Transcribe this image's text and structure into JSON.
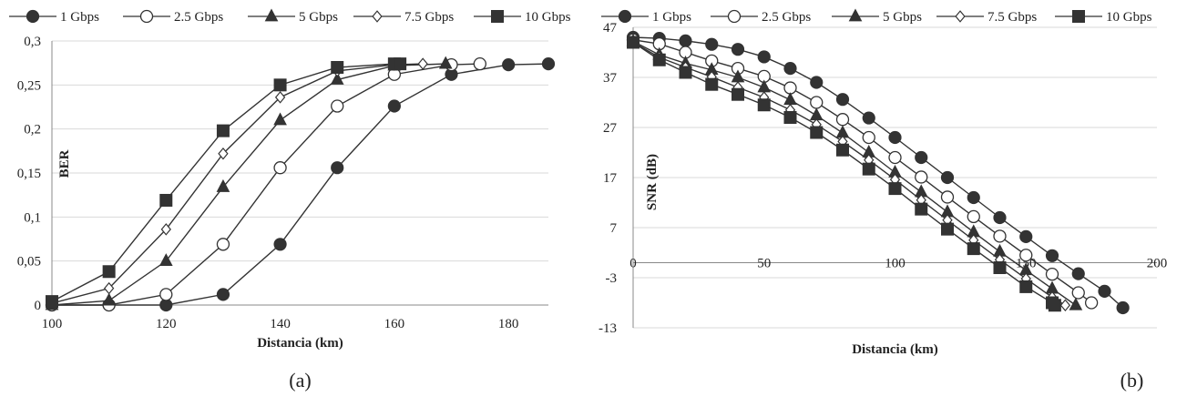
{
  "charts": [
    {
      "id": "a",
      "caption": "(a)",
      "chart_data": {
        "type": "line",
        "xlabel": "Distancia  (km)",
        "ylabel": "BER",
        "xlim": [
          100,
          187
        ],
        "ylim": [
          0,
          0.3
        ],
        "xticks": [
          100,
          120,
          140,
          160,
          180
        ],
        "xtick_labels": [
          "100",
          "120",
          "140",
          "160",
          "180"
        ],
        "yticks": [
          0,
          0.05,
          0.1,
          0.15,
          0.2,
          0.25,
          0.3
        ],
        "ytick_labels": [
          "0",
          "0,05",
          "0,1",
          "0,15",
          "0,2",
          "0,25",
          "0,3"
        ],
        "grid": "horizontal",
        "legend": "top",
        "series": [
          {
            "name": "1 Gbps",
            "marker": "circle-filled",
            "x": [
              100,
              110,
              120,
              130,
              140,
              150,
              160,
              170,
              180,
              187
            ],
            "y": [
              0,
              0,
              0,
              0.012,
              0.069,
              0.156,
              0.226,
              0.262,
              0.273,
              0.274
            ]
          },
          {
            "name": "2.5 Gbps",
            "marker": "circle-open",
            "x": [
              100,
              110,
              120,
              130,
              140,
              150,
              160,
              170,
              175
            ],
            "y": [
              0,
              0,
              0.012,
              0.069,
              0.156,
              0.226,
              0.262,
              0.273,
              0.274
            ]
          },
          {
            "name": "5 Gbps",
            "marker": "triangle-filled",
            "x": [
              100,
              110,
              120,
              130,
              140,
              150,
              160,
              169
            ],
            "y": [
              0,
              0.005,
              0.05,
              0.134,
              0.21,
              0.256,
              0.272,
              0.274
            ]
          },
          {
            "name": "7.5 Gbps",
            "marker": "diamond-open",
            "x": [
              100,
              110,
              120,
              130,
              140,
              150,
              160,
              165
            ],
            "y": [
              0.002,
              0.019,
              0.086,
              0.172,
              0.236,
              0.266,
              0.273,
              0.274
            ]
          },
          {
            "name": "10 Gbps",
            "marker": "square-filled",
            "x": [
              100,
              110,
              120,
              130,
              140,
              150,
              160,
              161
            ],
            "y": [
              0.004,
              0.038,
              0.119,
              0.198,
              0.25,
              0.27,
              0.274,
              0.274
            ]
          }
        ]
      }
    },
    {
      "id": "b",
      "caption": "(b)",
      "chart_data": {
        "type": "line",
        "xlabel": "Distancia (km)",
        "ylabel": "SNR (dB)",
        "xlim": [
          0,
          200
        ],
        "ylim": [
          -13,
          47
        ],
        "xticks": [
          0,
          50,
          100,
          150,
          200
        ],
        "xtick_labels": [
          "0",
          "50",
          "100",
          "150",
          "200"
        ],
        "yticks": [
          -13,
          -3,
          7,
          17,
          27,
          37,
          47
        ],
        "ytick_labels": [
          "-13",
          "-3",
          "7",
          "17",
          "27",
          "37",
          "47"
        ],
        "grid": "horizontal",
        "legend": "top",
        "series": [
          {
            "name": "1 Gbps",
            "marker": "circle-filled",
            "x": [
              0,
              10,
              20,
              30,
              40,
              50,
              60,
              70,
              80,
              90,
              100,
              110,
              120,
              130,
              140,
              150,
              160,
              170,
              180,
              187
            ],
            "y": [
              45,
              44.8,
              44.3,
              43.6,
              42.6,
              41.1,
              38.8,
              36,
              32.6,
              28.9,
              25,
              21,
              17,
              13,
              9,
              5.2,
              1.4,
              -2.2,
              -5.7,
              -9
            ]
          },
          {
            "name": "2.5 Gbps",
            "marker": "circle-open",
            "x": [
              0,
              10,
              20,
              30,
              40,
              50,
              60,
              70,
              80,
              90,
              100,
              110,
              120,
              130,
              140,
              150,
              160,
              170,
              175
            ],
            "y": [
              44.5,
              43.7,
              42,
              40.3,
              38.8,
              37.2,
              34.9,
              32,
              28.6,
              25,
              21,
              17.1,
              13.1,
              9.2,
              5.3,
              1.5,
              -2.3,
              -6,
              -8
            ]
          },
          {
            "name": "5 Gbps",
            "marker": "triangle-filled",
            "x": [
              0,
              10,
              20,
              30,
              40,
              50,
              60,
              70,
              80,
              90,
              100,
              110,
              120,
              130,
              140,
              150,
              160,
              169
            ],
            "y": [
              44.2,
              41.5,
              39.8,
              38.5,
              37,
              35,
              32.5,
              29.4,
              25.9,
              22,
              18,
              14.1,
              10.1,
              6.1,
              2.2,
              -1.5,
              -5.2,
              -8.5
            ]
          },
          {
            "name": "7.5 Gbps",
            "marker": "diamond-open",
            "x": [
              0,
              10,
              20,
              30,
              40,
              50,
              60,
              70,
              80,
              90,
              100,
              110,
              120,
              130,
              140,
              150,
              160,
              165
            ],
            "y": [
              44,
              41,
              39,
              37.1,
              35,
              33,
              30.5,
              27.6,
              24.2,
              20.5,
              16.6,
              12.5,
              8.5,
              4.5,
              0.6,
              -3.2,
              -6.9,
              -8.5
            ]
          },
          {
            "name": "10 Gbps",
            "marker": "square-filled",
            "x": [
              0,
              10,
              20,
              30,
              40,
              50,
              60,
              70,
              80,
              90,
              100,
              110,
              120,
              130,
              140,
              150,
              160,
              161
            ],
            "y": [
              44,
              40.5,
              38,
              35.6,
              33.6,
              31.5,
              29,
              26,
              22.5,
              18.7,
              14.8,
              10.7,
              6.7,
              2.8,
              -1,
              -4.8,
              -8,
              -8.5
            ]
          }
        ]
      }
    }
  ]
}
